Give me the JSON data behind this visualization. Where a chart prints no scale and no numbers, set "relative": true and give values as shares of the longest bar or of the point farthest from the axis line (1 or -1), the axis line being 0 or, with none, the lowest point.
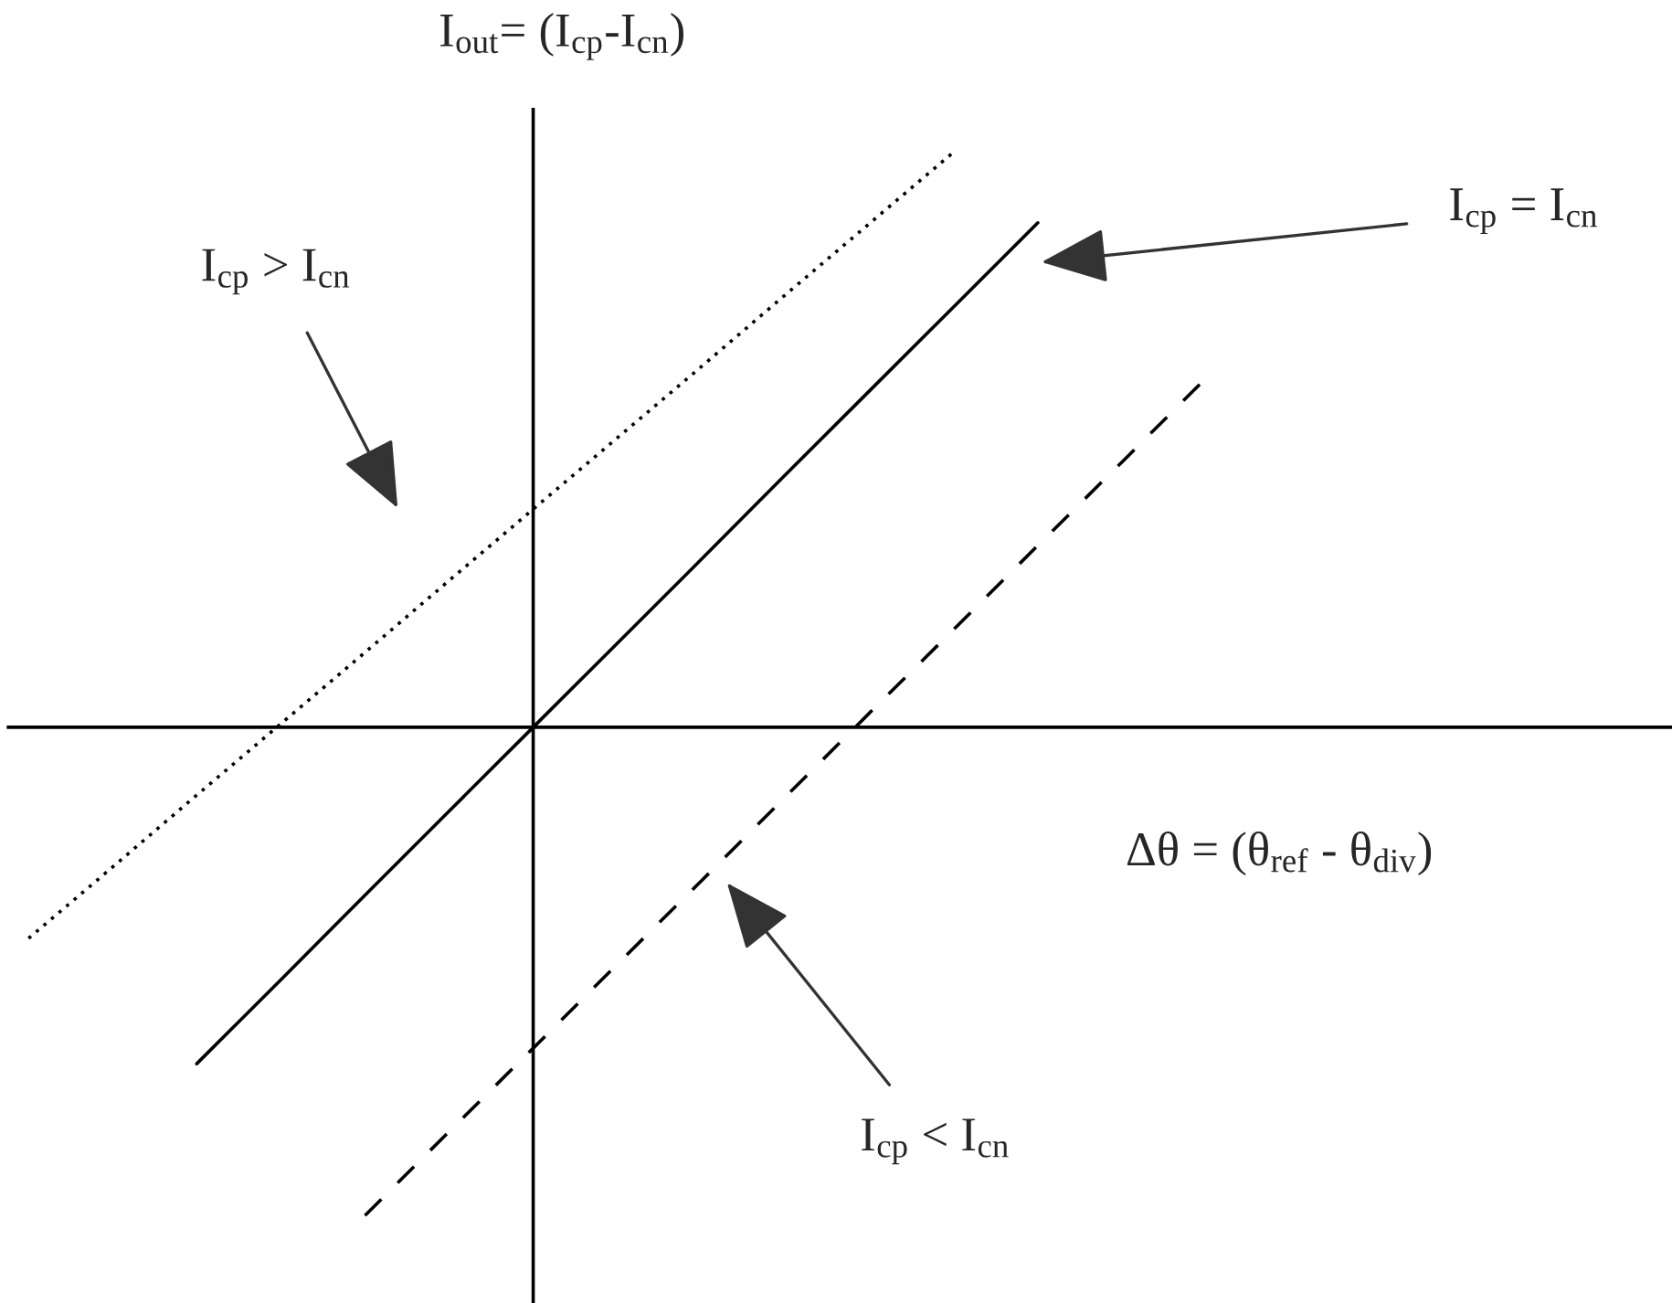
{
  "chart_data": {
    "type": "line",
    "relative": true,
    "xlabel": "Δθ = (θ$_{ref}$ - θ$_{div}$)",
    "ylabel": "I$_{out}$= (I$_{cp}$-I$_{cn}$)",
    "categories": [
      null,
      null,
      null,
      null,
      null,
      null,
      null,
      null,
      null,
      null,
      null,
      null,
      null,
      null,
      null
    ],
    "series": [
      {
        "color": "#000000",
        "line_style": "dotted",
        "values": [
          -0.367,
          -0.243,
          -0.118,
          0.006,
          0.13,
          0.255,
          0.379,
          0.503,
          0.627,
          0.752,
          0.876,
          1.0,
          null,
          null,
          null
        ]
      },
      {
        "color": "#000000",
        "line_style": "solid",
        "values": [
          null,
          null,
          -0.585,
          -0.439,
          -0.292,
          -0.146,
          0,
          0.146,
          0.292,
          0.439,
          0.585,
          0.731,
          0.877,
          null,
          null
        ]
      },
      {
        "color": "#000000",
        "line_style": "dashed",
        "values": [
          null,
          null,
          null,
          null,
          -0.849,
          -0.703,
          -0.558,
          -0.412,
          -0.267,
          -0.121,
          0.025,
          0.17,
          0.316,
          0.461,
          0.607
        ]
      }
    ],
    "annotations": [
      "I$_{cp}$ = I$_{cn}$",
      "I$_{cp}$ > I$_{cn}$",
      "I$_{cp}$ < I$_{cn}$"
    ],
    "grid": false,
    "legend": false,
    "tick_labels": false
  }
}
